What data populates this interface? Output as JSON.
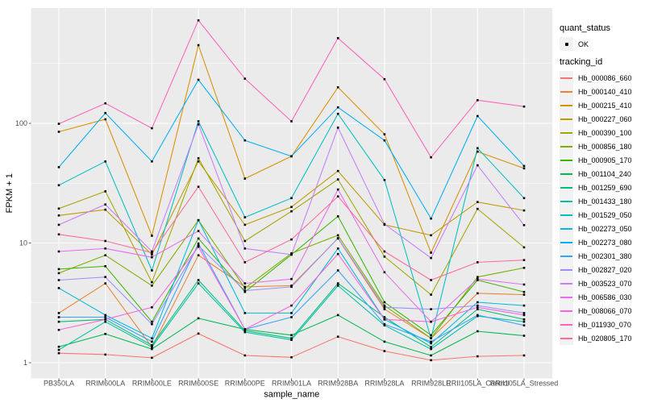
{
  "chart_data": {
    "type": "line",
    "title": "",
    "xlabel": "sample_name",
    "ylabel": "FPKM + 1",
    "y_scale": "log10",
    "ylim": [
      0.7,
      950
    ],
    "y_ticks": [
      "1",
      "10",
      "100"
    ],
    "grid": "on",
    "legend_position": "right",
    "point_shape": "small black square (quant_status OK)",
    "categories": [
      "PB350LA",
      "RRIM600LA",
      "RRIM600LE",
      "RRIM600SE",
      "RRIM600PE",
      "RRIM901LA",
      "RRIM928BA",
      "RRIM928LA",
      "RRIM928LE",
      "RRII105LA_Control",
      "RRII105LA_Stressed"
    ],
    "legend": {
      "quant_status": {
        "title": "quant_status",
        "items": [
          {
            "label": "OK"
          }
        ]
      },
      "tracking_id": {
        "title": "tracking_id"
      }
    },
    "style": {
      "panel_bg": "#EBEBEB",
      "grid_color": "#FFFFFF",
      "axis_text_color": "#4D4D4D",
      "axis_title_color": "#000000",
      "tick_color": "#333333",
      "point_color": "#000000",
      "legend_key_bg": "#F2F2F2"
    },
    "series": [
      {
        "name": "Hb_000086_660",
        "color": "#F8766D",
        "values": [
          1.2,
          1.17,
          1.1,
          1.75,
          1.15,
          1.11,
          1.65,
          1.25,
          1.05,
          1.13,
          1.15
        ]
      },
      {
        "name": "Hb_000140_410",
        "color": "#EA8331",
        "values": [
          2.6,
          4.6,
          1.35,
          7.9,
          4.3,
          4.4,
          10.9,
          2.8,
          1.6,
          3.8,
          3.7
        ]
      },
      {
        "name": "Hb_000215_410",
        "color": "#D89000",
        "values": [
          85,
          108,
          11.5,
          450,
          34.5,
          53,
          200,
          81,
          8.3,
          58,
          42
        ]
      },
      {
        "name": "Hb_000227_060",
        "color": "#C09B00",
        "values": [
          17,
          19,
          8.0,
          48,
          14.2,
          20,
          40,
          14.2,
          11.6,
          22,
          18.7
        ]
      },
      {
        "name": "Hb_000390_100",
        "color": "#A3A500",
        "values": [
          19.4,
          27,
          4.7,
          51,
          10.4,
          18.4,
          34,
          7.7,
          3.7,
          19.3,
          9.2
        ]
      },
      {
        "name": "Hb_000856_180",
        "color": "#7CAE00",
        "values": [
          5.6,
          7.9,
          4.4,
          15.5,
          4.2,
          8.2,
          11.6,
          3.0,
          1.6,
          5.2,
          6.2
        ]
      },
      {
        "name": "Hb_000905_170",
        "color": "#39B600",
        "values": [
          6.05,
          6.4,
          2.2,
          10.9,
          3.9,
          8.0,
          16.7,
          3.2,
          1.7,
          4.9,
          3.9
        ]
      },
      {
        "name": "Hb_001104_240",
        "color": "#00BB4E",
        "values": [
          1.36,
          1.74,
          1.3,
          2.35,
          1.9,
          1.7,
          2.5,
          1.5,
          1.15,
          1.83,
          1.68
        ]
      },
      {
        "name": "Hb_001259_690",
        "color": "#00BF7D",
        "values": [
          2.2,
          2.3,
          1.4,
          4.9,
          1.85,
          1.6,
          4.6,
          2.4,
          1.35,
          2.8,
          2.3
        ]
      },
      {
        "name": "Hb_001433_180",
        "color": "#00C1A3",
        "values": [
          1.28,
          2.2,
          1.35,
          4.6,
          1.8,
          1.55,
          4.4,
          2.05,
          1.3,
          2.45,
          2.2
        ]
      },
      {
        "name": "Hb_001529_050",
        "color": "#00BFC4",
        "values": [
          30.4,
          48,
          5.9,
          104,
          16.4,
          23.7,
          120,
          33.6,
          1.6,
          62,
          23.7
        ]
      },
      {
        "name": "Hb_002273_050",
        "color": "#00BAE0",
        "values": [
          4.2,
          2.5,
          1.6,
          15.5,
          2.6,
          2.6,
          9.0,
          2.3,
          1.45,
          3.2,
          3.0
        ]
      },
      {
        "name": "Hb_002273_080",
        "color": "#00B0F6",
        "values": [
          43,
          122,
          48,
          231,
          72,
          53,
          136,
          72,
          16,
          115,
          44
        ]
      },
      {
        "name": "Hb_002301_380",
        "color": "#35A2FF",
        "values": [
          2.4,
          2.4,
          1.5,
          9.9,
          1.9,
          2.4,
          5.9,
          2.1,
          1.5,
          2.5,
          2.05
        ]
      },
      {
        "name": "Hb_002827_020",
        "color": "#9590FF",
        "values": [
          4.9,
          5.2,
          2.1,
          9.5,
          4.0,
          4.3,
          11.0,
          2.9,
          2.8,
          3.0,
          2.6
        ]
      },
      {
        "name": "Hb_003523_070",
        "color": "#C77CFF",
        "values": [
          14.2,
          21,
          8.5,
          98,
          9.0,
          8.0,
          92,
          14.4,
          7.5,
          44.6,
          14.1
        ]
      },
      {
        "name": "Hb_006586_030",
        "color": "#E76BF3",
        "values": [
          8.5,
          9.0,
          7.6,
          12.6,
          4.6,
          5.0,
          28,
          5.7,
          2.2,
          5.0,
          4.5
        ]
      },
      {
        "name": "Hb_008066_070",
        "color": "#FA62DB",
        "values": [
          1.88,
          2.3,
          2.9,
          9.3,
          1.9,
          3.0,
          8.1,
          2.3,
          2.2,
          2.9,
          2.5
        ]
      },
      {
        "name": "Hb_011930_070",
        "color": "#FF62BC",
        "values": [
          99,
          147,
          91,
          725,
          236,
          104,
          515,
          234,
          52,
          156,
          138
        ]
      },
      {
        "name": "Hb_020805_170",
        "color": "#FF6A98",
        "values": [
          11.8,
          10.4,
          8.3,
          29.5,
          6.9,
          10.7,
          24.5,
          8.5,
          4.9,
          6.9,
          7.2
        ]
      }
    ]
  }
}
